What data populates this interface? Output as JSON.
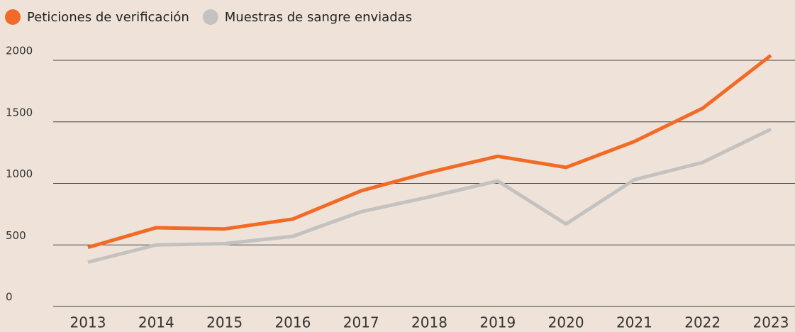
{
  "chart_data": {
    "type": "line",
    "categories": [
      "2013",
      "2014",
      "2015",
      "2016",
      "2017",
      "2018",
      "2019",
      "2020",
      "2021",
      "2022",
      "2023"
    ],
    "series": [
      {
        "name": "Peticiones de verificación",
        "color": "#f26b26",
        "values": [
          480,
          640,
          630,
          710,
          940,
          1090,
          1220,
          1130,
          1340,
          1610,
          2040
        ]
      },
      {
        "name": "Muestras de sangre enviadas",
        "color": "#c4c2c0",
        "values": [
          360,
          500,
          510,
          570,
          770,
          890,
          1020,
          670,
          1030,
          1170,
          1440
        ]
      }
    ],
    "ylim": [
      0,
      2000
    ],
    "yticks": [
      0,
      500,
      1000,
      1500,
      2000
    ],
    "grid": true,
    "legend": "top-left"
  }
}
